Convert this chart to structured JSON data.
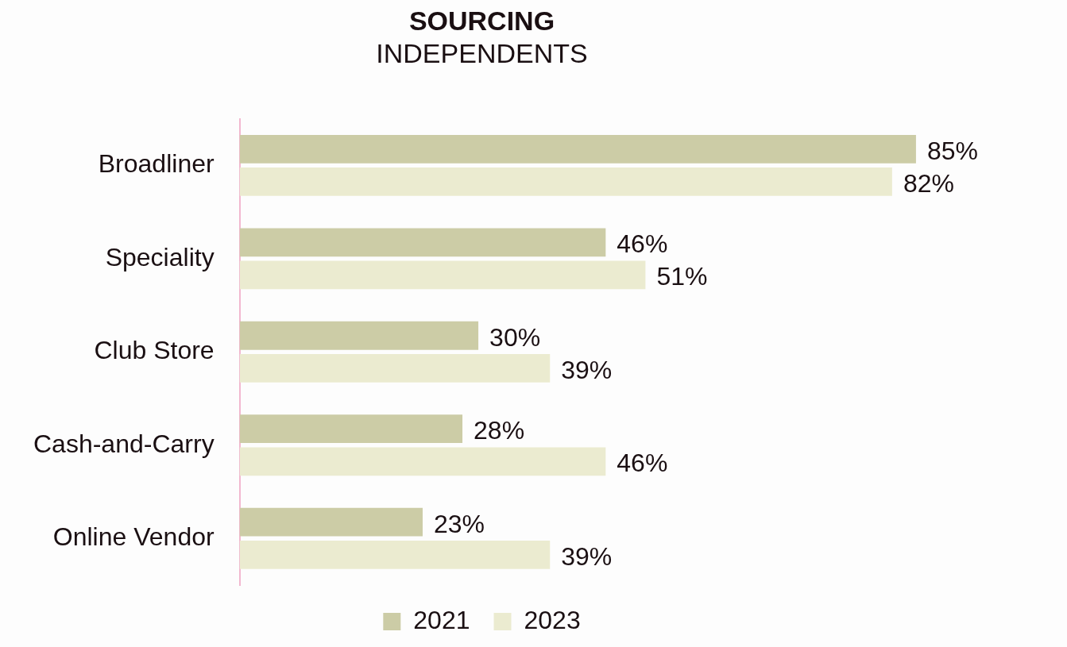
{
  "chart_data": {
    "type": "bar",
    "orientation": "horizontal",
    "title": "SOURCING",
    "subtitle": "INDEPENDENTS",
    "categories": [
      "Broadliner",
      "Speciality",
      "Club Store",
      "Cash-and-Carry",
      "Online Vendor"
    ],
    "series": [
      {
        "name": "2021",
        "color": "#cccca6",
        "values": [
          85,
          46,
          30,
          28,
          23
        ],
        "value_labels": [
          "85%",
          "46%",
          "30%",
          "28%",
          "23%"
        ]
      },
      {
        "name": "2023",
        "color": "#ebebd0",
        "values": [
          82,
          51,
          39,
          46,
          39
        ],
        "value_labels": [
          "82%",
          "51%",
          "39%",
          "46%",
          "39%"
        ]
      }
    ],
    "legend": "bottom",
    "tick_labels": "y"
  }
}
